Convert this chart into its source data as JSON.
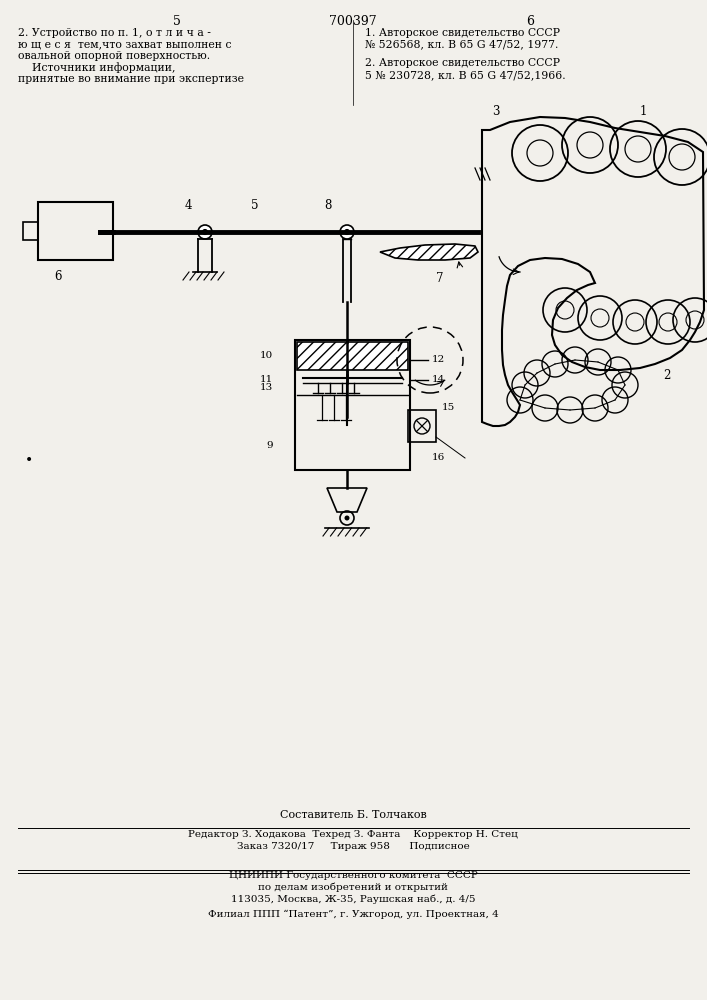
{
  "bg_color": "#f2f0eb",
  "top_left_number": "5",
  "top_center_number": "700397",
  "top_right_number": "6",
  "text_col1_line1": "2. Устройство по п. 1, о т л и ч а -",
  "text_col1_line2": "ю щ е с я  тем,что захват выполнен с",
  "text_col1_line3": "овальной опорной поверхностью.",
  "text_col1_line4": "    Источники информации,",
  "text_col1_line5": "принятые во внимание при экспертизе",
  "text_col2_line1": "1. Авторское свидетельство СССР",
  "text_col2_line2": "№ 526568, кл. В 65 G 47/52, 1977.",
  "text_col2_line3": "2. Авторское свидетельство СССР",
  "text_col2_line4": "5 № 230728, кл. В 65 G 47/52,1966.",
  "footer_line1": "Составитель Б. Толчаков",
  "footer_line2": "Редактор З. Ходакова  Техред З. Фанта    Корректор Н. Стец",
  "footer_line3": "Заказ 7320/17     Тираж 958      Подписное",
  "footer_line4": "ЦНИИПИ Государственного комитета  СССР",
  "footer_line5": "по делам изобретений и открытий",
  "footer_line6": "113035, Москва, Ж-35, Раушская наб., д. 4/5",
  "footer_line7": "Филиал ППП “Патент”, г. Ужгород, ул. Проектная, 4"
}
